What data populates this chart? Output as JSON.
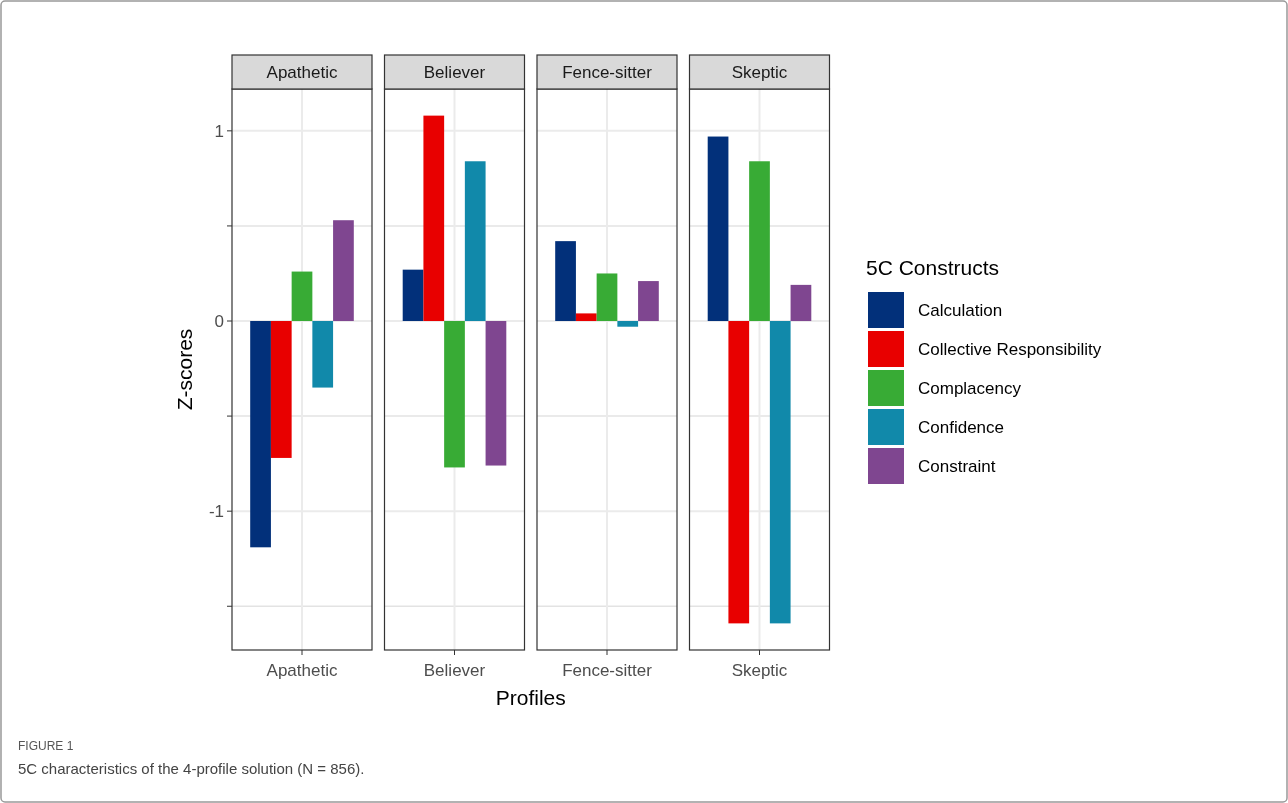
{
  "chart_data": {
    "type": "bar",
    "xlabel": "Profiles",
    "ylabel": "Z-scores",
    "legend_title": "5C Constructs",
    "categories": [
      "Apathetic",
      "Believer",
      "Fence-sitter",
      "Skeptic"
    ],
    "series": [
      {
        "name": "Calculation",
        "color": "#02307a",
        "values": [
          -1.19,
          0.27,
          0.42,
          0.97
        ]
      },
      {
        "name": "Collective Responsibility",
        "color": "#e80000",
        "values": [
          -0.72,
          1.08,
          0.04,
          -1.59
        ]
      },
      {
        "name": "Complacency",
        "color": "#38ab35",
        "values": [
          0.26,
          -0.77,
          0.25,
          0.84
        ]
      },
      {
        "name": "Confidence",
        "color": "#1189aa",
        "values": [
          -0.35,
          0.84,
          -0.03,
          -1.59
        ]
      },
      {
        "name": "Constraint",
        "color": "#7f4690",
        "values": [
          0.53,
          -0.76,
          0.21,
          0.19
        ]
      }
    ],
    "ylim": [
      -1.73,
      1.22
    ],
    "yticks": [
      {
        "value": -1.5,
        "label": null
      },
      -1,
      {
        "value": -0.5,
        "label": null
      },
      0,
      {
        "value": 0.5,
        "label": null
      },
      1
    ],
    "grid": true,
    "legend": "right",
    "annotations": [
      "FIGURE 1",
      "5C characteristics of the 4-profile solution (N = 856)."
    ]
  }
}
